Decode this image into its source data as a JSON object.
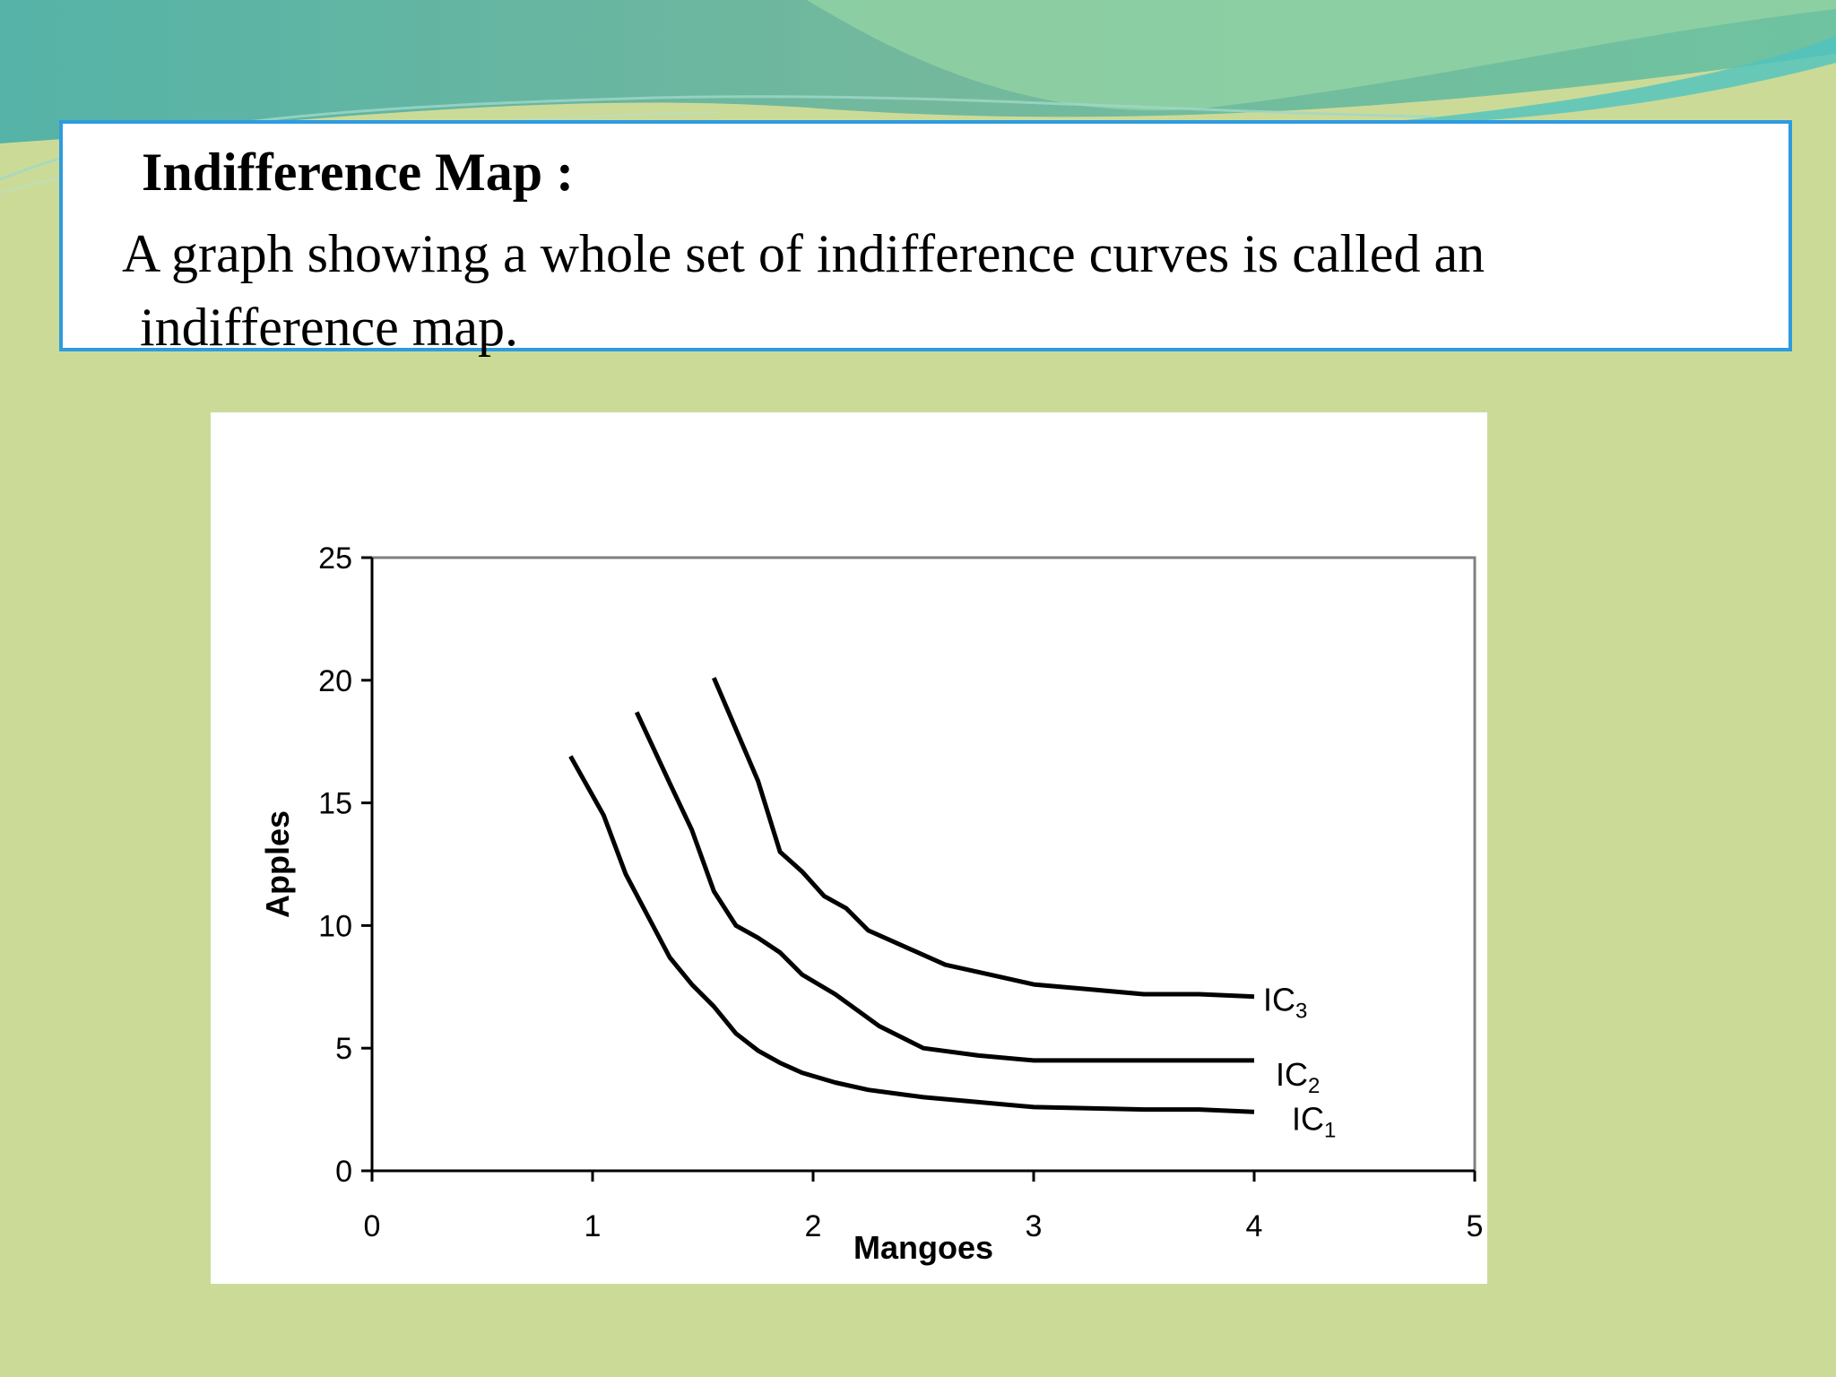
{
  "slide": {
    "title": "Indifference Map :",
    "body_line1": "A graph showing a whole set of indifference curves is called an",
    "body_line2": "indifference map."
  },
  "colors": {
    "background": "#cbdb97",
    "box_border": "#2e9be0",
    "banner_dark": "#5fb7a8",
    "banner_light": "#8fcf9e"
  },
  "chart_data": {
    "type": "line",
    "xlabel": "Mangoes",
    "ylabel": "Apples",
    "xlim": [
      0,
      5
    ],
    "ylim": [
      0,
      25
    ],
    "xticks": [
      0,
      1,
      2,
      3,
      4,
      5
    ],
    "yticks": [
      0,
      5,
      10,
      15,
      20,
      25
    ],
    "grid": false,
    "legend": "none",
    "series": [
      {
        "label_main": "IC",
        "label_sub": "1",
        "x": [
          0.9,
          1.05,
          1.15,
          1.25,
          1.35,
          1.45,
          1.55,
          1.65,
          1.75,
          1.85,
          1.95,
          2.1,
          2.25,
          2.5,
          2.75,
          3.0,
          3.5,
          3.75,
          4.0
        ],
        "y": [
          16.9,
          14.5,
          12.1,
          10.4,
          8.7,
          7.6,
          6.7,
          5.6,
          4.9,
          4.4,
          4.0,
          3.6,
          3.3,
          3.0,
          2.8,
          2.6,
          2.5,
          2.5,
          2.4
        ]
      },
      {
        "label_main": "IC",
        "label_sub": "2",
        "x": [
          1.2,
          1.35,
          1.45,
          1.55,
          1.65,
          1.75,
          1.85,
          1.95,
          2.1,
          2.3,
          2.5,
          2.75,
          3.0,
          3.5,
          4.0
        ],
        "y": [
          18.7,
          15.8,
          13.9,
          11.4,
          10.0,
          9.5,
          8.9,
          8.0,
          7.2,
          5.9,
          5.0,
          4.7,
          4.5,
          4.5,
          4.5
        ]
      },
      {
        "label_main": "IC",
        "label_sub": "3",
        "x": [
          1.55,
          1.65,
          1.75,
          1.85,
          1.95,
          2.05,
          2.15,
          2.25,
          2.4,
          2.6,
          2.8,
          3.0,
          3.25,
          3.5,
          3.75,
          4.0
        ],
        "y": [
          20.1,
          18.0,
          15.9,
          13.0,
          12.2,
          11.2,
          10.7,
          9.8,
          9.2,
          8.4,
          8.0,
          7.6,
          7.4,
          7.2,
          7.2,
          7.1
        ]
      }
    ]
  }
}
